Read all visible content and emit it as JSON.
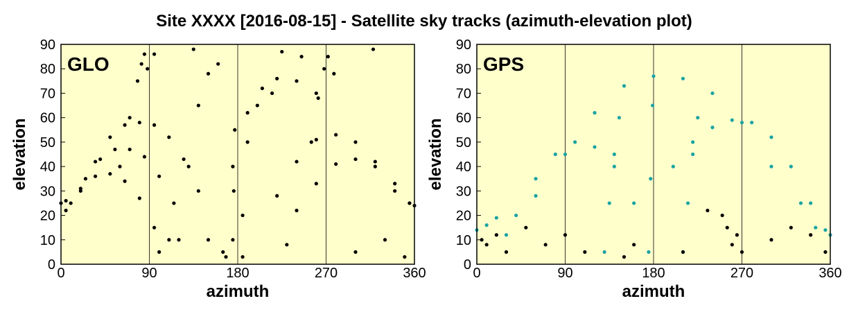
{
  "title": "Site XXXX [2016-08-15] - Satellite sky tracks (azimuth-elevation plot)",
  "chart_data": [
    {
      "type": "scatter",
      "annotation": "GLO",
      "xlabel": "azimuth",
      "ylabel": "elevation",
      "xlim": [
        0,
        360
      ],
      "ylim": [
        0,
        90
      ],
      "xticks": [
        0,
        90,
        180,
        270,
        360
      ],
      "yticks": [
        0,
        10,
        20,
        30,
        40,
        50,
        60,
        70,
        80,
        90
      ],
      "grid": "x",
      "background": "#ffffcc",
      "series": [
        {
          "color": "#000000",
          "x": [
            20,
            35,
            50,
            65,
            80,
            95,
            110,
            125,
            140,
            10,
            25,
            40,
            55,
            70,
            85,
            100,
            115,
            5,
            20,
            35,
            50,
            65,
            80,
            95,
            60,
            70,
            78,
            82,
            85,
            88,
            220,
            240,
            260,
            280,
            300,
            320,
            340,
            240,
            260,
            280,
            300,
            320,
            340,
            355,
            255,
            262,
            268,
            272,
            278,
            165,
            175,
            190,
            205,
            220,
            240,
            260,
            120,
            130,
            140,
            150,
            160,
            175,
            176,
            177,
            185,
            190,
            200,
            215,
            135,
            318,
            95,
            225,
            245,
            0,
            5,
            355,
            360,
            100,
            110,
            150,
            168,
            185,
            230,
            300,
            330,
            350
          ],
          "y": [
            30,
            42,
            52,
            57,
            58,
            57,
            52,
            43,
            30,
            25,
            35,
            43,
            47,
            47,
            44,
            36,
            25,
            22,
            31,
            36,
            37,
            34,
            27,
            15,
            40,
            60,
            75,
            82,
            86,
            80,
            28,
            42,
            51,
            53,
            50,
            42,
            30,
            22,
            33,
            41,
            43,
            40,
            33,
            25,
            50,
            68,
            80,
            85,
            78,
            5,
            40,
            62,
            72,
            76,
            75,
            70,
            10,
            40,
            65,
            78,
            82,
            10,
            30,
            55,
            20,
            50,
            65,
            70,
            88,
            88,
            86,
            87,
            85,
            25,
            26,
            25,
            24,
            5,
            10,
            10,
            3,
            3,
            8,
            5,
            10,
            3
          ]
        }
      ]
    },
    {
      "type": "scatter",
      "annotation": "GPS",
      "xlabel": "azimuth",
      "ylabel": "elevation",
      "xlim": [
        0,
        360
      ],
      "ylim": [
        0,
        90
      ],
      "xticks": [
        0,
        90,
        180,
        270,
        360
      ],
      "yticks": [
        0,
        10,
        20,
        30,
        40,
        50,
        60,
        70,
        80,
        90
      ],
      "grid": "x",
      "background": "#ffffcc",
      "series": [
        {
          "color": "#1aa3a3",
          "x": [
            30,
            60,
            90,
            120,
            150,
            180,
            210,
            240,
            270,
            300,
            330,
            360,
            200,
            220,
            240,
            260,
            280,
            300,
            320,
            340,
            40,
            60,
            80,
            100,
            120,
            140,
            160,
            130,
            135,
            140,
            145,
            175,
            177,
            179,
            210,
            215,
            220,
            225,
            0,
            10,
            20,
            345,
            355
          ],
          "y": [
            12,
            28,
            45,
            62,
            73,
            77,
            76,
            70,
            58,
            40,
            25,
            12,
            40,
            50,
            56,
            59,
            58,
            52,
            40,
            25,
            20,
            35,
            45,
            50,
            48,
            40,
            25,
            5,
            25,
            45,
            60,
            5,
            35,
            65,
            5,
            25,
            45,
            60,
            14,
            16,
            19,
            15,
            14
          ]
        },
        {
          "color": "#000000",
          "x": [
            5,
            10,
            20,
            30,
            50,
            70,
            90,
            110,
            150,
            160,
            210,
            235,
            250,
            255,
            260,
            265,
            270,
            300,
            320,
            340,
            355
          ],
          "y": [
            10,
            8,
            12,
            5,
            15,
            8,
            12,
            5,
            3,
            8,
            5,
            22,
            20,
            15,
            8,
            12,
            5,
            10,
            15,
            12,
            5
          ]
        }
      ]
    }
  ]
}
